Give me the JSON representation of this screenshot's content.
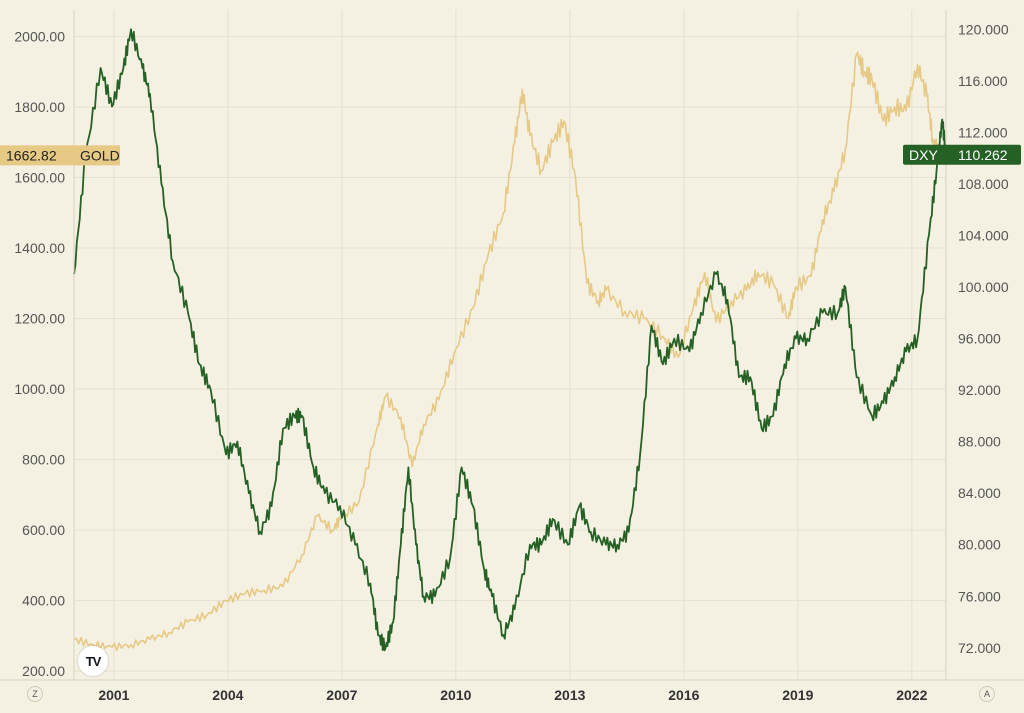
{
  "chart_data": {
    "type": "line",
    "x_ticks": [
      "2001",
      "2004",
      "2007",
      "2010",
      "2013",
      "2016",
      "2019",
      "2022"
    ],
    "y_left_ticks": [
      "200.00",
      "400.00",
      "600.00",
      "800.00",
      "1000.00",
      "1200.00",
      "1400.00",
      "1600.00",
      "1800.00",
      "2000.00"
    ],
    "y_right_ticks": [
      "72.000",
      "76.000",
      "80.000",
      "84.000",
      "88.000",
      "92.000",
      "96.000",
      "100.000",
      "104.000",
      "108.000",
      "112.000",
      "116.000",
      "120.000"
    ],
    "ylim_left": [
      175,
      2075
    ],
    "ylim_right": [
      69.5,
      121.5
    ],
    "xlim": [
      2000.0,
      2022.95
    ],
    "series": [
      {
        "name": "GOLD",
        "axis": "left",
        "color": "#e7c986",
        "last_label": "1662.82",
        "x": [
          2000.0,
          2000.5,
          2001.0,
          2001.5,
          2002.0,
          2002.5,
          2003.0,
          2003.5,
          2004.0,
          2004.5,
          2005.0,
          2005.5,
          2006.0,
          2006.4,
          2006.8,
          2007.0,
          2007.5,
          2008.0,
          2008.2,
          2008.6,
          2008.9,
          2009.2,
          2009.6,
          2010.0,
          2010.5,
          2010.9,
          2011.3,
          2011.6,
          2011.8,
          2012.0,
          2012.3,
          2012.6,
          2012.9,
          2013.2,
          2013.5,
          2013.8,
          2014.0,
          2014.5,
          2015.0,
          2015.5,
          2015.9,
          2016.3,
          2016.6,
          2016.9,
          2017.3,
          2017.7,
          2018.0,
          2018.4,
          2018.8,
          2019.0,
          2019.4,
          2019.7,
          2020.0,
          2020.3,
          2020.6,
          2020.8,
          2021.0,
          2021.3,
          2021.6,
          2021.9,
          2022.2,
          2022.45,
          2022.6,
          2022.75,
          2022.95
        ],
        "values": [
          290,
          275,
          268,
          275,
          290,
          310,
          340,
          360,
          400,
          420,
          430,
          440,
          530,
          640,
          600,
          630,
          680,
          900,
          980,
          920,
          780,
          900,
          970,
          1100,
          1230,
          1380,
          1500,
          1700,
          1850,
          1720,
          1620,
          1700,
          1760,
          1600,
          1300,
          1250,
          1280,
          1220,
          1200,
          1150,
          1090,
          1230,
          1330,
          1190,
          1250,
          1280,
          1330,
          1300,
          1200,
          1290,
          1320,
          1480,
          1560,
          1680,
          1950,
          1900,
          1880,
          1760,
          1800,
          1790,
          1920,
          1830,
          1710,
          1670,
          1662.82
        ]
      },
      {
        "name": "DXY",
        "axis": "right",
        "color": "#256125",
        "last_label": "110.262",
        "x": [
          2000.0,
          2000.3,
          2000.7,
          2001.0,
          2001.3,
          2001.5,
          2001.8,
          2002.0,
          2002.3,
          2002.6,
          2003.0,
          2003.3,
          2003.6,
          2004.0,
          2004.3,
          2004.6,
          2004.9,
          2005.2,
          2005.5,
          2005.8,
          2006.0,
          2006.3,
          2006.6,
          2007.0,
          2007.4,
          2007.8,
          2008.0,
          2008.2,
          2008.4,
          2008.6,
          2008.8,
          2009.0,
          2009.2,
          2009.5,
          2009.9,
          2010.2,
          2010.5,
          2010.8,
          2011.0,
          2011.3,
          2011.6,
          2012.0,
          2012.3,
          2012.6,
          2013.0,
          2013.3,
          2013.6,
          2014.0,
          2014.3,
          2014.6,
          2014.9,
          2015.2,
          2015.5,
          2015.8,
          2016.2,
          2016.5,
          2016.9,
          2017.2,
          2017.5,
          2017.8,
          2018.1,
          2018.4,
          2018.7,
          2019.0,
          2019.3,
          2019.7,
          2020.1,
          2020.3,
          2020.6,
          2021.0,
          2021.3,
          2021.6,
          2021.9,
          2022.2,
          2022.5,
          2022.7,
          2022.85,
          2022.95
        ],
        "values": [
          101,
          110,
          117,
          114,
          117,
          120,
          117,
          115,
          108,
          102,
          98,
          94,
          92,
          87,
          88,
          84,
          81,
          83,
          89,
          90,
          90,
          86,
          84,
          83,
          80,
          77,
          73,
          72,
          74,
          80,
          86,
          80,
          76,
          76,
          79,
          86,
          83,
          78,
          76,
          73,
          75,
          80,
          80,
          82,
          80,
          83,
          81,
          80,
          80,
          81,
          87,
          97,
          94,
          96,
          95,
          98,
          101,
          99,
          93,
          93,
          89,
          90,
          94,
          96,
          96,
          98,
          98,
          100,
          93,
          90,
          91,
          93,
          95,
          96,
          104,
          109,
          113,
          110.262
        ]
      }
    ]
  }
}
